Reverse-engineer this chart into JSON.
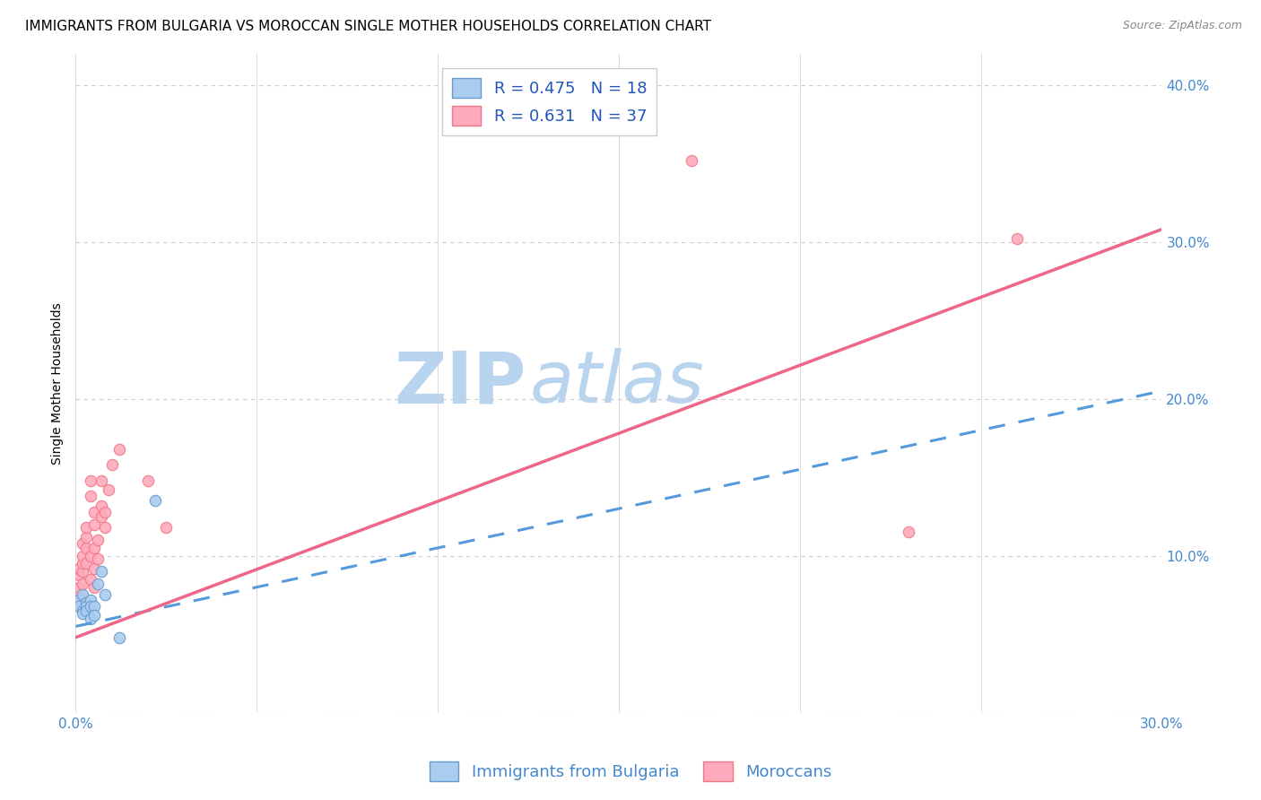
{
  "title": "IMMIGRANTS FROM BULGARIA VS MOROCCAN SINGLE MOTHER HOUSEHOLDS CORRELATION CHART",
  "source": "Source: ZipAtlas.com",
  "ylabel": "Single Mother Households",
  "xlim": [
    0.0,
    0.3
  ],
  "ylim": [
    0.0,
    0.42
  ],
  "xticks": [
    0.0,
    0.05,
    0.1,
    0.15,
    0.2,
    0.25,
    0.3
  ],
  "yticks": [
    0.0,
    0.1,
    0.2,
    0.3,
    0.4
  ],
  "xtick_labels": [
    "0.0%",
    "",
    "",
    "",
    "",
    "",
    "30.0%"
  ],
  "ytick_labels_right": [
    "",
    "10.0%",
    "20.0%",
    "30.0%",
    "40.0%"
  ],
  "watermark_zip": "ZIP",
  "watermark_atlas": "atlas",
  "watermark_color": "#b8d4ee",
  "bg_color": "#ffffff",
  "grid_color": "#cccccc",
  "blue_scatter_x": [
    0.001,
    0.001,
    0.002,
    0.002,
    0.002,
    0.003,
    0.003,
    0.003,
    0.004,
    0.004,
    0.004,
    0.005,
    0.005,
    0.006,
    0.007,
    0.008,
    0.012,
    0.022
  ],
  "blue_scatter_y": [
    0.072,
    0.068,
    0.075,
    0.065,
    0.063,
    0.07,
    0.068,
    0.065,
    0.072,
    0.068,
    0.06,
    0.068,
    0.062,
    0.082,
    0.09,
    0.075,
    0.048,
    0.135
  ],
  "pink_scatter_x": [
    0.001,
    0.001,
    0.001,
    0.001,
    0.002,
    0.002,
    0.002,
    0.002,
    0.002,
    0.003,
    0.003,
    0.003,
    0.003,
    0.004,
    0.004,
    0.004,
    0.004,
    0.005,
    0.005,
    0.005,
    0.005,
    0.005,
    0.006,
    0.006,
    0.007,
    0.007,
    0.007,
    0.008,
    0.008,
    0.009,
    0.01,
    0.012,
    0.02,
    0.025,
    0.17,
    0.23,
    0.26
  ],
  "pink_scatter_y": [
    0.075,
    0.08,
    0.088,
    0.092,
    0.082,
    0.09,
    0.095,
    0.1,
    0.108,
    0.095,
    0.105,
    0.112,
    0.118,
    0.085,
    0.1,
    0.138,
    0.148,
    0.08,
    0.092,
    0.105,
    0.12,
    0.128,
    0.098,
    0.11,
    0.125,
    0.132,
    0.148,
    0.118,
    0.128,
    0.142,
    0.158,
    0.168,
    0.148,
    0.118,
    0.352,
    0.115,
    0.302
  ],
  "blue_line_x": [
    0.0,
    0.3
  ],
  "blue_line_y": [
    0.055,
    0.205
  ],
  "blue_line_color": "#5599dd",
  "blue_line_style": "--",
  "pink_line_x": [
    0.0,
    0.3
  ],
  "pink_line_y": [
    0.048,
    0.308
  ],
  "pink_line_color": "#ee6688",
  "pink_line_style": "-",
  "scatter_blue_facecolor": "#aaccee",
  "scatter_blue_edgecolor": "#6699cc",
  "scatter_pink_facecolor": "#ffaabc",
  "scatter_pink_edgecolor": "#ee7788",
  "scatter_size": 80,
  "legend1_label": "R = 0.475   N = 18",
  "legend2_label": "R = 0.631   N = 37",
  "legend_color": "#2255bb",
  "legend_fontsize": 13,
  "bottom_legend1": "Immigrants from Bulgaria",
  "bottom_legend2": "Moroccans",
  "bottom_legend_color": "#4488cc",
  "title_fontsize": 11,
  "source_fontsize": 9,
  "ylabel_fontsize": 10,
  "tick_fontsize": 11
}
